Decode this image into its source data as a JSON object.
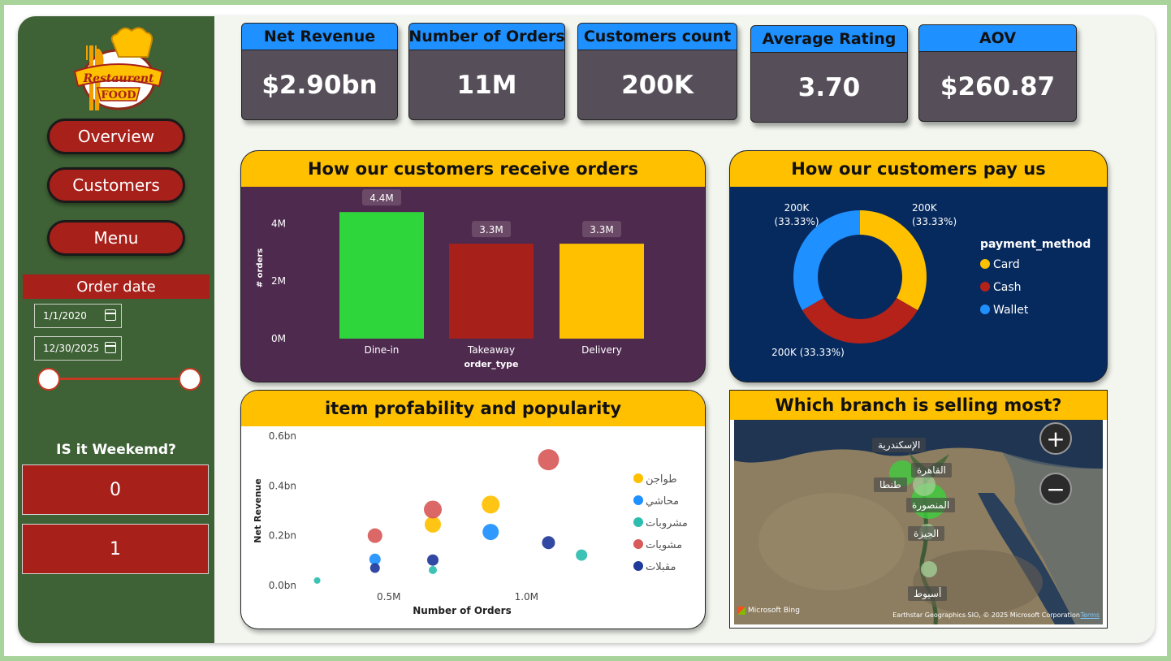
{
  "brand": {
    "logo_line1": "Restaurent",
    "logo_line2": "FOOD"
  },
  "nav": {
    "overview": "Overview",
    "customers": "Customers",
    "menu": "Menu"
  },
  "date_slicer": {
    "title": "Order date",
    "start": "1/1/2020",
    "end": "12/30/2025"
  },
  "weekend": {
    "title": "IS it Weekemd?",
    "options": [
      "0",
      "1"
    ]
  },
  "kpis": [
    {
      "label": "Net Revenue",
      "value": "$2.90bn"
    },
    {
      "label": "Number of Orders",
      "value": "11M"
    },
    {
      "label": "Customers count",
      "value": "200K"
    },
    {
      "label": "Average Rating",
      "value": "3.70"
    },
    {
      "label": "AOV",
      "value": "$260.87"
    }
  ],
  "colors": {
    "sidebar": "#3e6135",
    "accent_red": "#a8201a",
    "title_yellow": "#ffc000",
    "kpi_blue": "#1e90ff",
    "green": "#2fd63b",
    "dark_red": "#a8201a",
    "yellow": "#ffc000"
  },
  "chart_data": [
    {
      "type": "bar",
      "title": "How our customers receive orders",
      "xlabel": "order_type",
      "ylabel": "# orders",
      "categories": [
        "Dine-in",
        "Takeaway",
        "Delivery"
      ],
      "values": [
        4.4,
        3.3,
        3.3
      ],
      "value_labels": [
        "4.4M",
        "3.3M",
        "3.3M"
      ],
      "colors": [
        "#2fd63b",
        "#a8201a",
        "#ffc000"
      ],
      "yticks": [
        "0M",
        "2M",
        "4M"
      ],
      "ylim": [
        0,
        4.8
      ]
    },
    {
      "type": "pie",
      "title": "How our customers pay us",
      "legend_title": "payment_method",
      "labels": [
        "Card",
        "Cash",
        "Wallet"
      ],
      "values": [
        200,
        200,
        200
      ],
      "colors": [
        "#ffc000",
        "#b42219",
        "#1e90ff"
      ],
      "slice_labels": [
        [
          "200K",
          "(33.33%)"
        ],
        [
          "200K (33.33%)"
        ],
        [
          "200K",
          "(33.33%)"
        ]
      ]
    },
    {
      "type": "scatter",
      "title": "item profability and popularity",
      "xlabel": "Number of Orders",
      "ylabel": "Net Revenue",
      "xticks": [
        {
          "v": 0.5,
          "label": "0.5M"
        },
        {
          "v": 1.0,
          "label": "1.0M"
        }
      ],
      "yticks": [
        {
          "v": 0,
          "label": "0.0bn"
        },
        {
          "v": 0.2,
          "label": "0.2bn"
        },
        {
          "v": 0.4,
          "label": "0.4bn"
        },
        {
          "v": 0.6,
          "label": "0.6bn"
        }
      ],
      "xlim": [
        0.2,
        1.35
      ],
      "ylim": [
        0,
        0.6
      ],
      "series": [
        {
          "name": "طواجن",
          "color": "#ffc000",
          "points": [
            [
              0.66,
              0.245,
              10
            ],
            [
              0.87,
              0.325,
              11
            ]
          ]
        },
        {
          "name": "محاشي",
          "color": "#1e90ff",
          "points": [
            [
              0.45,
              0.105,
              7
            ],
            [
              0.87,
              0.215,
              10
            ]
          ]
        },
        {
          "name": "مشروبات",
          "color": "#2dbdb0",
          "points": [
            [
              0.24,
              0.02,
              4
            ],
            [
              0.66,
              0.062,
              5
            ],
            [
              1.2,
              0.122,
              7
            ]
          ]
        },
        {
          "name": "مشويات",
          "color": "#d85a5a",
          "points": [
            [
              0.45,
              0.2,
              9
            ],
            [
              0.66,
              0.305,
              11
            ],
            [
              1.08,
              0.505,
              13
            ]
          ]
        },
        {
          "name": "مقبلات",
          "color": "#1f3a9a",
          "points": [
            [
              0.45,
              0.07,
              6
            ],
            [
              0.66,
              0.102,
              7
            ],
            [
              1.08,
              0.172,
              8
            ]
          ]
        }
      ]
    }
  ],
  "map": {
    "title": "Which branch is selling most?",
    "branches": [
      "الإسكندرية",
      "القاهرة",
      "طنطا",
      "المنصورة",
      "الجيزة",
      "أسيوط"
    ],
    "attribution": "Earthstar Geographics SIO, © 2025 Microsoft Corporation",
    "terms": "Terms",
    "provider": "Microsoft Bing",
    "zoom_in": "+",
    "zoom_out": "−"
  }
}
